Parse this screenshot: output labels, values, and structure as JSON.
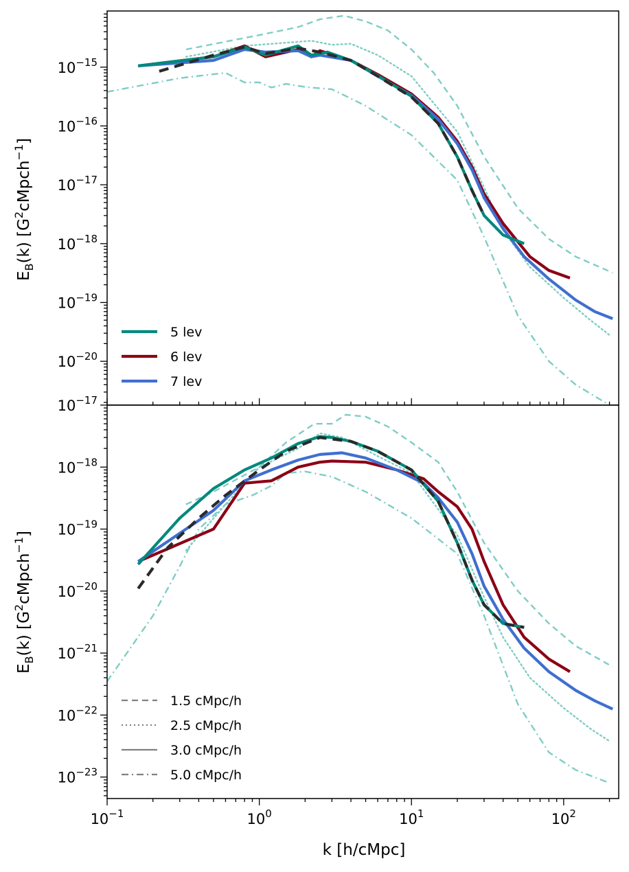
{
  "colors": {
    "teal": "#00897b",
    "darkred": "#8b0015",
    "blue": "#3f6fcf",
    "lightteal": "#7fcdc4",
    "black": "#2a2a2a",
    "gray": "#808080"
  },
  "chart_data": [
    {
      "type": "line",
      "panel": "top",
      "xscale": "log",
      "yscale": "log",
      "xlim": [
        0.1,
        230
      ],
      "ylim": [
        1.8e-21,
        9e-15
      ],
      "ylabel": "E_B(k) [G^2cMpch^-1]",
      "ytick_labels": [
        "10^-15",
        "10^-16",
        "10^-17",
        "10^-18",
        "10^-19",
        "10^-20"
      ],
      "legend": {
        "position": "lower-left",
        "entries": [
          "5 lev",
          "6 lev",
          "7 lev"
        ]
      },
      "series": [
        {
          "name": "5 lev",
          "color": "teal",
          "style": "solid",
          "x": [
            0.16,
            0.5,
            0.8,
            1.1,
            1.8,
            2.2,
            2.8,
            4,
            6,
            10,
            15,
            20,
            25,
            30,
            40,
            55
          ],
          "y": [
            1.05e-15,
            1.5e-15,
            2.2e-15,
            1.6e-15,
            2.3e-15,
            1.6e-15,
            1.8e-15,
            1.3e-15,
            7.2e-16,
            3.2e-16,
            1.1e-16,
            3e-17,
            8e-18,
            3e-18,
            1.4e-18,
            1e-18
          ]
        },
        {
          "name": "6 lev",
          "color": "darkred",
          "style": "solid",
          "x": [
            0.16,
            0.5,
            0.8,
            1.1,
            1.8,
            2.2,
            2.5,
            4,
            6,
            10,
            15,
            20,
            25,
            30,
            40,
            60,
            80,
            110
          ],
          "y": [
            1.05e-15,
            1.5e-15,
            2.3e-15,
            1.5e-15,
            2e-15,
            1.5e-15,
            1.9e-15,
            1.3e-15,
            7.5e-16,
            3.5e-16,
            1.4e-16,
            5.5e-17,
            2e-17,
            7e-18,
            2.2e-18,
            6e-19,
            3.5e-19,
            2.6e-19
          ]
        },
        {
          "name": "7 lev",
          "color": "blue",
          "style": "solid",
          "x": [
            0.16,
            0.5,
            0.8,
            1.1,
            1.8,
            2.2,
            2.5,
            4,
            6,
            10,
            15,
            20,
            25,
            30,
            40,
            55,
            80,
            120,
            160,
            210
          ],
          "y": [
            1.05e-15,
            1.3e-15,
            2e-15,
            1.8e-15,
            1.9e-15,
            1.5e-15,
            1.6e-15,
            1.3e-15,
            7e-16,
            3.3e-16,
            1.3e-16,
            5e-17,
            1.8e-17,
            6e-18,
            1.8e-18,
            6e-19,
            2.5e-19,
            1.1e-19,
            7e-20,
            5.3e-20
          ]
        },
        {
          "name": "1.5 cMpc/h",
          "color": "lightteal",
          "style": "dashed",
          "x": [
            0.33,
            1,
            1.8,
            2.5,
            3.6,
            5,
            7,
            10,
            14,
            20,
            30,
            50,
            80,
            120,
            210
          ],
          "y": [
            2e-15,
            3.5e-15,
            4.8e-15,
            6.5e-15,
            7.5e-15,
            6e-15,
            4.2e-15,
            2e-15,
            8e-16,
            2.2e-16,
            3e-17,
            4e-18,
            1.2e-18,
            6e-19,
            3.2e-19
          ]
        },
        {
          "name": "2.5 cMpc/h",
          "color": "lightteal",
          "style": "dotted",
          "x": [
            0.33,
            0.8,
            1.5,
            2.2,
            3,
            4,
            6,
            10,
            20,
            30,
            40,
            60,
            100,
            150,
            200
          ],
          "y": [
            1.5e-15,
            2.3e-15,
            2.6e-15,
            2.8e-15,
            2.4e-15,
            2.5e-15,
            1.6e-15,
            7e-16,
            8e-17,
            9e-18,
            1.7e-18,
            4e-19,
            1.2e-19,
            5e-20,
            2.8e-20
          ]
        },
        {
          "name": "5.0 cMpc/h",
          "color": "lightteal",
          "style": "dashdot",
          "x": [
            0.1,
            0.3,
            0.6,
            0.8,
            1,
            1.2,
            1.5,
            2,
            3,
            5,
            10,
            20,
            30,
            50,
            80,
            120,
            200
          ],
          "y": [
            3.8e-16,
            6.5e-16,
            8e-16,
            5.5e-16,
            5.5e-16,
            4.5e-16,
            5.2e-16,
            4.6e-16,
            4.2e-16,
            2.2e-16,
            7e-17,
            1.2e-17,
            1.3e-18,
            6e-20,
            1e-20,
            4e-21,
            1.8e-21
          ]
        },
        {
          "name": "black-dashed",
          "color": "black",
          "style": "heavydash",
          "x": [
            0.22,
            0.5,
            0.8,
            1.1,
            1.8,
            2.5,
            4,
            6,
            10,
            15,
            20,
            25,
            30
          ],
          "y": [
            8.5e-16,
            1.6e-15,
            2.2e-15,
            1.7e-15,
            2.1e-15,
            1.8e-15,
            1.3e-15,
            7e-16,
            3.1e-16,
            1.1e-16,
            3e-17,
            8e-18,
            3e-18
          ]
        }
      ]
    },
    {
      "type": "line",
      "panel": "bottom",
      "xscale": "log",
      "yscale": "log",
      "xlim": [
        0.1,
        230
      ],
      "ylim": [
        4.5e-24,
        1e-17
      ],
      "xlabel": "k [h/cMpc]",
      "ylabel": "E_B(k) [G^2cMpch^-1]",
      "xtick_labels": [
        "10^-1",
        "10^0",
        "10^1",
        "10^2"
      ],
      "ytick_labels": [
        "10^-17",
        "10^-18",
        "10^-19",
        "10^-20",
        "10^-21",
        "10^-22",
        "10^-23"
      ],
      "legend": {
        "position": "lower-left",
        "entries": [
          "1.5 cMpc/h",
          "2.5 cMpc/h",
          "3.0 cMpc/h",
          "5.0 cMpc/h"
        ]
      },
      "series": [
        {
          "name": "5 lev",
          "color": "teal",
          "style": "solid",
          "x": [
            0.16,
            0.3,
            0.5,
            0.8,
            1.2,
            1.8,
            2.5,
            3,
            4,
            6,
            10,
            15,
            20,
            25,
            30,
            40,
            55
          ],
          "y": [
            2.7e-20,
            1.5e-19,
            4.5e-19,
            9e-19,
            1.4e-18,
            2.4e-18,
            3.1e-18,
            3e-18,
            2.6e-18,
            1.8e-18,
            9e-19,
            2.8e-19,
            6e-20,
            1.5e-20,
            6e-21,
            3e-21,
            2.6e-21
          ]
        },
        {
          "name": "6 lev",
          "color": "darkred",
          "style": "solid",
          "x": [
            0.16,
            0.5,
            0.8,
            1.2,
            1.8,
            2.5,
            3,
            5,
            8,
            12,
            15,
            20,
            25,
            30,
            40,
            55,
            80,
            110
          ],
          "y": [
            3e-20,
            1e-19,
            5.5e-19,
            6e-19,
            1e-18,
            1.2e-18,
            1.25e-18,
            1.2e-18,
            9e-19,
            6.5e-19,
            4e-19,
            2.3e-19,
            1e-19,
            3e-20,
            6e-21,
            1.8e-21,
            8e-22,
            5e-22
          ]
        },
        {
          "name": "7 lev",
          "color": "blue",
          "style": "solid",
          "x": [
            0.16,
            0.5,
            0.8,
            1.2,
            1.8,
            2.5,
            3.5,
            5,
            8,
            12,
            15,
            20,
            25,
            30,
            40,
            55,
            80,
            120,
            160,
            210
          ],
          "y": [
            3e-20,
            2e-19,
            6e-19,
            9e-19,
            1.3e-18,
            1.6e-18,
            1.7e-18,
            1.4e-18,
            9e-19,
            5.5e-19,
            3.2e-19,
            1.3e-19,
            4e-20,
            1.2e-20,
            3.5e-21,
            1.2e-21,
            5e-22,
            2.5e-22,
            1.7e-22,
            1.25e-22
          ]
        },
        {
          "name": "1.5 cMpc/h",
          "color": "lightteal",
          "style": "dashed",
          "x": [
            0.33,
            0.5,
            1,
            1.5,
            2.3,
            3,
            3.7,
            5,
            7,
            10,
            15,
            20,
            30,
            50,
            80,
            120,
            210
          ],
          "y": [
            2.5e-19,
            4e-19,
            1e-18,
            2.5e-18,
            5e-18,
            5e-18,
            7e-18,
            6.5e-18,
            4.5e-18,
            2.5e-18,
            1.2e-18,
            4e-19,
            6e-20,
            1e-20,
            3e-21,
            1.3e-21,
            6e-22
          ]
        },
        {
          "name": "2.5 cMpc/h",
          "color": "lightteal",
          "style": "dotted",
          "x": [
            0.33,
            0.6,
            1,
            1.8,
            2.5,
            3.5,
            6,
            10,
            20,
            30,
            40,
            60,
            100,
            150,
            200
          ],
          "y": [
            4.5e-20,
            2.5e-19,
            1e-18,
            2e-18,
            3.5e-18,
            3e-18,
            1.5e-18,
            8e-19,
            8e-20,
            8e-21,
            1.8e-21,
            4e-22,
            1.3e-22,
            6e-23,
            3.8e-23
          ]
        },
        {
          "name": "3.0 cMpc/h",
          "color": "gray",
          "style": "solid",
          "x": [],
          "y": []
        },
        {
          "name": "5.0 cMpc/h",
          "color": "lightteal",
          "style": "dashdot",
          "x": [
            0.1,
            0.2,
            0.3,
            0.4,
            0.6,
            0.9,
            1.2,
            1.5,
            2,
            3,
            5,
            10,
            20,
            30,
            50,
            80,
            120,
            200
          ],
          "y": [
            3.5e-22,
            4e-21,
            2.5e-20,
            1e-19,
            2.5e-19,
            3.5e-19,
            5e-19,
            8e-19,
            8.5e-19,
            7e-19,
            4e-19,
            1.5e-19,
            4e-20,
            4e-21,
            1.5e-22,
            2.5e-23,
            1.3e-23,
            8e-24
          ]
        },
        {
          "name": "black-dashed",
          "color": "black",
          "style": "heavydash",
          "x": [
            0.16,
            0.25,
            0.4,
            0.6,
            1,
            1.5,
            2.5,
            4,
            6,
            10,
            15,
            20,
            25,
            30,
            40,
            55
          ],
          "y": [
            1.1e-20,
            5e-20,
            1.5e-19,
            3.5e-19,
            9e-19,
            1.8e-18,
            3e-18,
            2.6e-18,
            1.8e-18,
            9e-19,
            2.8e-19,
            6e-20,
            1.5e-20,
            6e-21,
            3e-21,
            2.6e-21
          ]
        }
      ]
    }
  ],
  "legend_top": [
    {
      "label": "5 lev",
      "color": "teal",
      "style": "solid"
    },
    {
      "label": "6 lev",
      "color": "darkred",
      "style": "solid"
    },
    {
      "label": "7 lev",
      "color": "blue",
      "style": "solid"
    }
  ],
  "legend_bottom": [
    {
      "label": "1.5 cMpc/h",
      "color": "gray",
      "style": "dashed"
    },
    {
      "label": "2.5 cMpc/h",
      "color": "gray",
      "style": "dotted"
    },
    {
      "label": "3.0 cMpc/h",
      "color": "gray",
      "style": "solid"
    },
    {
      "label": "5.0 cMpc/h",
      "color": "gray",
      "style": "dashdot"
    }
  ],
  "labels": {
    "xlabel": "k [h/cMpc]",
    "ylabel_main": "E",
    "ylabel_sub": "B",
    "ylabel_rest": "(k) [G",
    "ylabel_sup2": "2",
    "ylabel_unit": "cMpch",
    "ylabel_supm1": "−1",
    "ylabel_close": "]"
  },
  "ticks": {
    "top_y": [
      {
        "base": "10",
        "exp": "−15",
        "value": 1e-15
      },
      {
        "base": "10",
        "exp": "−16",
        "value": 1e-16
      },
      {
        "base": "10",
        "exp": "−17",
        "value": 1e-17
      },
      {
        "base": "10",
        "exp": "−18",
        "value": 1e-18
      },
      {
        "base": "10",
        "exp": "−19",
        "value": 1e-19
      },
      {
        "base": "10",
        "exp": "−20",
        "value": 1e-20
      }
    ],
    "bottom_y": [
      {
        "base": "10",
        "exp": "−17",
        "value": 1e-17
      },
      {
        "base": "10",
        "exp": "−18",
        "value": 1e-18
      },
      {
        "base": "10",
        "exp": "−19",
        "value": 1e-19
      },
      {
        "base": "10",
        "exp": "−20",
        "value": 1e-20
      },
      {
        "base": "10",
        "exp": "−21",
        "value": 1e-21
      },
      {
        "base": "10",
        "exp": "−22",
        "value": 1e-22
      },
      {
        "base": "10",
        "exp": "−23",
        "value": 1e-23
      }
    ],
    "x": [
      {
        "base": "10",
        "exp": "−1",
        "value": 0.1
      },
      {
        "base": "10",
        "exp": "0",
        "value": 1
      },
      {
        "base": "10",
        "exp": "1",
        "value": 10
      },
      {
        "base": "10",
        "exp": "2",
        "value": 100
      }
    ]
  }
}
